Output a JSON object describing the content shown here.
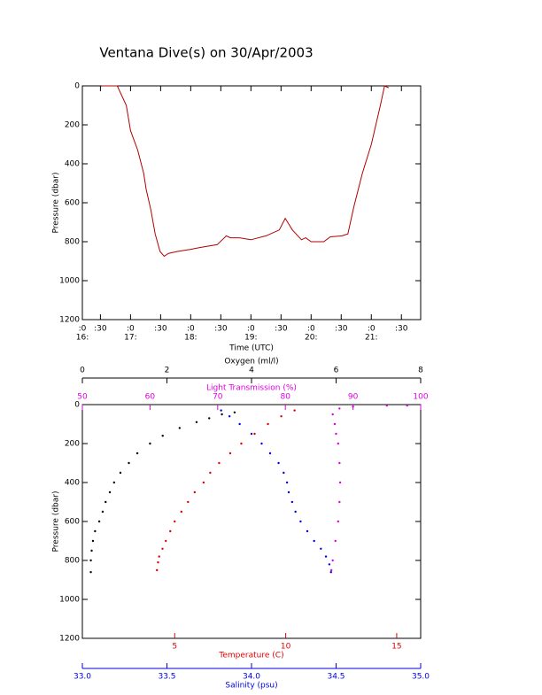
{
  "chart_data": [
    {
      "type": "line",
      "title": "Ventana Dive(s) on 30/Apr/2003",
      "xlabel": "Time (UTC)",
      "ylabel": "Pressure (dbar)",
      "color": "#b00000",
      "xlim": [
        16.2,
        21.82
      ],
      "ylim": [
        1200,
        0
      ],
      "yticks": [
        0,
        200,
        400,
        600,
        800,
        1000,
        1200
      ],
      "xticks": [
        {
          "value": 16.2,
          "label": ":0"
        },
        {
          "value": 16.5,
          "label": ":30"
        },
        {
          "value": 17,
          "label": ":0"
        },
        {
          "value": 17.5,
          "label": ":30"
        },
        {
          "value": 18,
          "label": ":0"
        },
        {
          "value": 18.5,
          "label": ":30"
        },
        {
          "value": 19,
          "label": ":0"
        },
        {
          "value": 19.5,
          "label": ":30"
        },
        {
          "value": 20,
          "label": ":0"
        },
        {
          "value": 20.5,
          "label": ":30"
        },
        {
          "value": 21,
          "label": ":0"
        },
        {
          "value": 21.5,
          "label": ":30"
        }
      ],
      "hour_ticks": [
        {
          "value": 16.2,
          "label": "16:"
        },
        {
          "value": 17,
          "label": "17:"
        },
        {
          "value": 18,
          "label": "18:"
        },
        {
          "value": 19,
          "label": "19:"
        },
        {
          "value": 20,
          "label": "20:"
        },
        {
          "value": 21,
          "label": "21:"
        }
      ],
      "x": [
        16.52,
        16.63,
        16.78,
        16.93,
        17.0,
        17.12,
        17.22,
        17.26,
        17.34,
        17.41,
        17.49,
        17.56,
        17.63,
        17.78,
        17.99,
        18.15,
        18.44,
        18.59,
        18.66,
        18.81,
        19.0,
        19.25,
        19.47,
        19.57,
        19.69,
        19.84,
        19.91,
        20.0,
        20.21,
        20.32,
        20.51,
        20.61,
        20.71,
        20.85,
        21.0,
        21.15,
        21.22,
        21.29
      ],
      "values": [
        0,
        0,
        0,
        100,
        230,
        330,
        450,
        530,
        640,
        760,
        850,
        875,
        860,
        850,
        840,
        830,
        815,
        770,
        780,
        780,
        790,
        770,
        740,
        680,
        740,
        790,
        780,
        800,
        800,
        775,
        770,
        760,
        620,
        450,
        300,
        100,
        0,
        10
      ]
    },
    {
      "type": "scatter",
      "ylabel": "Pressure (dbar)",
      "ylim": [
        1200,
        0
      ],
      "yticks": [
        0,
        200,
        400,
        600,
        800,
        1000,
        1200
      ],
      "axes": [
        {
          "label": "Oxygen (ml/l)",
          "color": "#000000",
          "lim": [
            0,
            8
          ],
          "ticks": [
            0,
            2,
            4,
            6,
            8
          ],
          "side": "top-outer"
        },
        {
          "label": "Light Transmission (%)",
          "color": "#e000e0",
          "lim": [
            50,
            100
          ],
          "ticks": [
            50,
            60,
            70,
            80,
            90,
            100
          ],
          "side": "top"
        },
        {
          "label": "Temperature (C)",
          "color": "#e00000",
          "lim": [
            0.84,
            16.08
          ],
          "ticks": [
            5,
            10,
            15
          ],
          "side": "bottom"
        },
        {
          "label": "Salinity (psu)",
          "color": "#0000e0",
          "lim": [
            33.0,
            35.0
          ],
          "ticks": [
            {
              "value": 33.0,
              "label": "33.0"
            },
            33.5,
            {
              "value": 34.0,
              "label": "34.0"
            },
            34.5,
            {
              "value": 35.0,
              "label": "35.0"
            }
          ],
          "side": "bottom-outer"
        }
      ],
      "series": [
        {
          "axis": 0,
          "color": "#000000",
          "pressure": [
            860,
            800,
            750,
            700,
            650,
            600,
            550,
            500,
            450,
            400,
            350,
            300,
            250,
            200,
            160,
            120,
            90,
            70,
            50,
            40
          ],
          "values": [
            0.2,
            0.2,
            0.22,
            0.25,
            0.3,
            0.4,
            0.48,
            0.55,
            0.65,
            0.75,
            0.9,
            1.1,
            1.3,
            1.6,
            1.9,
            2.3,
            2.7,
            3.0,
            3.3,
            3.6
          ]
        },
        {
          "axis": 1,
          "color": "#e000e0",
          "pressure": [
            850,
            800,
            700,
            600,
            500,
            400,
            300,
            200,
            150,
            100,
            50,
            20,
            10,
            5,
            5
          ],
          "values": [
            86.8,
            87.0,
            87.4,
            87.8,
            88.0,
            88.1,
            88.0,
            87.8,
            87.5,
            87.3,
            87.0,
            88.0,
            90.0,
            95.0,
            98.0
          ]
        },
        {
          "axis": 2,
          "color": "#e00000",
          "pressure": [
            850,
            810,
            780,
            740,
            700,
            650,
            600,
            550,
            500,
            450,
            400,
            350,
            300,
            250,
            200,
            150,
            100,
            60,
            30
          ],
          "values": [
            4.2,
            4.25,
            4.3,
            4.45,
            4.6,
            4.8,
            5.0,
            5.3,
            5.6,
            5.9,
            6.3,
            6.6,
            7.0,
            7.5,
            8.0,
            8.6,
            9.2,
            9.8,
            10.4
          ]
        },
        {
          "axis": 3,
          "color": "#0000e0",
          "pressure": [
            860,
            820,
            780,
            740,
            700,
            650,
            600,
            550,
            500,
            450,
            400,
            350,
            300,
            250,
            200,
            150,
            100,
            60,
            30
          ],
          "values": [
            34.47,
            34.46,
            34.44,
            34.41,
            34.37,
            34.33,
            34.29,
            34.26,
            34.24,
            34.22,
            34.21,
            34.19,
            34.16,
            34.11,
            34.06,
            34.0,
            33.93,
            33.87,
            33.82
          ]
        }
      ]
    }
  ]
}
